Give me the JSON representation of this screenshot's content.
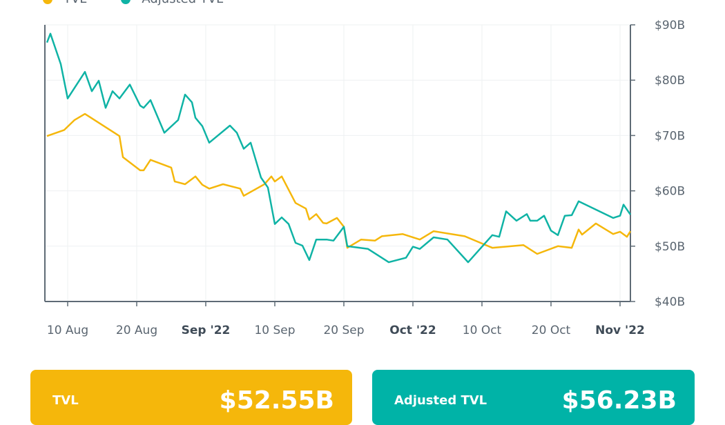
{
  "chart_data": {
    "type": "line",
    "legend_position": "top-left",
    "grid": true,
    "y_axis_side": "right",
    "ylim": [
      40,
      90
    ],
    "y_ticks": [
      "$40B",
      "$50B",
      "$60B",
      "$70B",
      "$80B",
      "$90B"
    ],
    "y_tick_values": [
      40,
      50,
      60,
      70,
      80,
      90
    ],
    "x_ticks": [
      {
        "label": "10 Aug",
        "major": false
      },
      {
        "label": "20 Aug",
        "major": false
      },
      {
        "label": "Sep '22",
        "major": true
      },
      {
        "label": "10 Sep",
        "major": false
      },
      {
        "label": "20 Sep",
        "major": false
      },
      {
        "label": "Oct '22",
        "major": true
      },
      {
        "label": "10 Oct",
        "major": false
      },
      {
        "label": "20 Oct",
        "major": false
      },
      {
        "label": "Nov '22",
        "major": true
      }
    ],
    "series": [
      {
        "name": "TVL",
        "color": "#f5b70b",
        "points": [
          [
            "2022-08-07T00",
            69.9
          ],
          [
            "2022-08-09T12",
            71.0
          ],
          [
            "2022-08-11T00",
            72.8
          ],
          [
            "2022-08-12T12",
            73.9
          ],
          [
            "2022-08-17T12",
            69.9
          ],
          [
            "2022-08-18T00",
            66.1
          ],
          [
            "2022-08-20T12",
            63.7
          ],
          [
            "2022-08-21T00",
            63.7
          ],
          [
            "2022-08-22T00",
            65.6
          ],
          [
            "2022-08-25T00",
            64.2
          ],
          [
            "2022-08-25T12",
            61.7
          ],
          [
            "2022-08-27T00",
            61.2
          ],
          [
            "2022-08-28T12",
            62.6
          ],
          [
            "2022-08-29T12",
            61.1
          ],
          [
            "2022-08-30T12",
            60.4
          ],
          [
            "2022-09-01T12",
            61.2
          ],
          [
            "2022-09-04T00",
            60.4
          ],
          [
            "2022-09-04T12",
            59.1
          ],
          [
            "2022-09-07T12",
            61.2
          ],
          [
            "2022-09-08T12",
            62.6
          ],
          [
            "2022-09-09T00",
            61.7
          ],
          [
            "2022-09-10T00",
            62.6
          ],
          [
            "2022-09-12T00",
            57.8
          ],
          [
            "2022-09-13T12",
            56.8
          ],
          [
            "2022-09-14T00",
            54.8
          ],
          [
            "2022-09-15T00",
            55.8
          ],
          [
            "2022-09-16T00",
            54.2
          ],
          [
            "2022-09-16T12",
            54.1
          ],
          [
            "2022-09-18T00",
            55.1
          ],
          [
            "2022-09-19T00",
            53.5
          ],
          [
            "2022-09-19T12",
            49.7
          ],
          [
            "2022-09-21T12",
            51.2
          ],
          [
            "2022-09-23T12",
            51.0
          ],
          [
            "2022-09-24T12",
            51.8
          ],
          [
            "2022-09-27T12",
            52.2
          ],
          [
            "2022-09-30T00",
            51.2
          ],
          [
            "2022-10-02T00",
            52.7
          ],
          [
            "2022-10-06T12",
            51.8
          ],
          [
            "2022-10-10T12",
            49.7
          ],
          [
            "2022-10-15T00",
            50.2
          ],
          [
            "2022-10-17T00",
            48.6
          ],
          [
            "2022-10-20T00",
            50.0
          ],
          [
            "2022-10-22T00",
            49.7
          ],
          [
            "2022-10-23T00",
            53.0
          ],
          [
            "2022-10-23T12",
            52.1
          ],
          [
            "2022-10-25T12",
            54.1
          ],
          [
            "2022-10-28T00",
            52.2
          ],
          [
            "2022-10-29T00",
            52.6
          ],
          [
            "2022-10-30T00",
            51.7
          ],
          [
            "2022-10-30T12",
            52.7
          ]
        ]
      },
      {
        "name": "Adjusted TVL",
        "color": "#0fb3a5",
        "points": [
          [
            "2022-08-07T00",
            86.8
          ],
          [
            "2022-08-07T12",
            88.4
          ],
          [
            "2022-08-09T00",
            82.9
          ],
          [
            "2022-08-10T00",
            76.7
          ],
          [
            "2022-08-12T12",
            81.5
          ],
          [
            "2022-08-13T12",
            78.0
          ],
          [
            "2022-08-14T12",
            79.9
          ],
          [
            "2022-08-15T12",
            75.0
          ],
          [
            "2022-08-16T12",
            78.0
          ],
          [
            "2022-08-17T12",
            76.7
          ],
          [
            "2022-08-19T00",
            79.2
          ],
          [
            "2022-08-20T12",
            75.4
          ],
          [
            "2022-08-21T00",
            75.0
          ],
          [
            "2022-08-22T00",
            76.4
          ],
          [
            "2022-08-24T00",
            70.5
          ],
          [
            "2022-08-26T00",
            72.8
          ],
          [
            "2022-08-27T00",
            77.4
          ],
          [
            "2022-08-28T00",
            76.0
          ],
          [
            "2022-08-28T12",
            73.2
          ],
          [
            "2022-08-29T12",
            71.7
          ],
          [
            "2022-08-30T12",
            68.7
          ],
          [
            "2022-09-02T12",
            71.8
          ],
          [
            "2022-09-03T12",
            70.5
          ],
          [
            "2022-09-04T12",
            67.6
          ],
          [
            "2022-09-05T12",
            68.7
          ],
          [
            "2022-09-07T00",
            62.4
          ],
          [
            "2022-09-08T00",
            60.6
          ],
          [
            "2022-09-09T00",
            54.0
          ],
          [
            "2022-09-10T00",
            55.2
          ],
          [
            "2022-09-11T00",
            54.0
          ],
          [
            "2022-09-12T00",
            50.6
          ],
          [
            "2022-09-13T00",
            50.1
          ],
          [
            "2022-09-14T00",
            47.5
          ],
          [
            "2022-09-15T00",
            51.2
          ],
          [
            "2022-09-16T12",
            51.2
          ],
          [
            "2022-09-17T12",
            51.0
          ],
          [
            "2022-09-19T00",
            53.5
          ],
          [
            "2022-09-19T12",
            50.0
          ],
          [
            "2022-09-22T12",
            49.5
          ],
          [
            "2022-09-25T12",
            47.1
          ],
          [
            "2022-09-28T00",
            47.9
          ],
          [
            "2022-09-29T00",
            49.9
          ],
          [
            "2022-09-30T00",
            49.5
          ],
          [
            "2022-10-02T00",
            51.6
          ],
          [
            "2022-10-04T00",
            51.2
          ],
          [
            "2022-10-07T00",
            47.1
          ],
          [
            "2022-10-10T12",
            52.0
          ],
          [
            "2022-10-11T12",
            51.7
          ],
          [
            "2022-10-12T12",
            56.3
          ],
          [
            "2022-10-14T00",
            54.6
          ],
          [
            "2022-10-15T12",
            55.8
          ],
          [
            "2022-10-16T00",
            54.6
          ],
          [
            "2022-10-17T00",
            54.6
          ],
          [
            "2022-10-18T00",
            55.5
          ],
          [
            "2022-10-19T00",
            52.8
          ],
          [
            "2022-10-20T00",
            52.0
          ],
          [
            "2022-10-21T00",
            55.5
          ],
          [
            "2022-10-22T00",
            55.6
          ],
          [
            "2022-10-23T00",
            58.1
          ],
          [
            "2022-10-28T00",
            55.1
          ],
          [
            "2022-10-29T00",
            55.5
          ],
          [
            "2022-10-29T12",
            57.5
          ],
          [
            "2022-10-30T12",
            55.7
          ]
        ]
      }
    ]
  },
  "legend": {
    "tvl": "TVL",
    "adjusted_tvl": "Adjusted TVL"
  },
  "cards": {
    "tvl": {
      "label": "TVL",
      "value": "$52.55B",
      "color": "#f5b70b"
    },
    "adjusted_tvl": {
      "label": "Adjusted TVL",
      "value": "$56.23B",
      "color": "#00b3a7"
    }
  }
}
